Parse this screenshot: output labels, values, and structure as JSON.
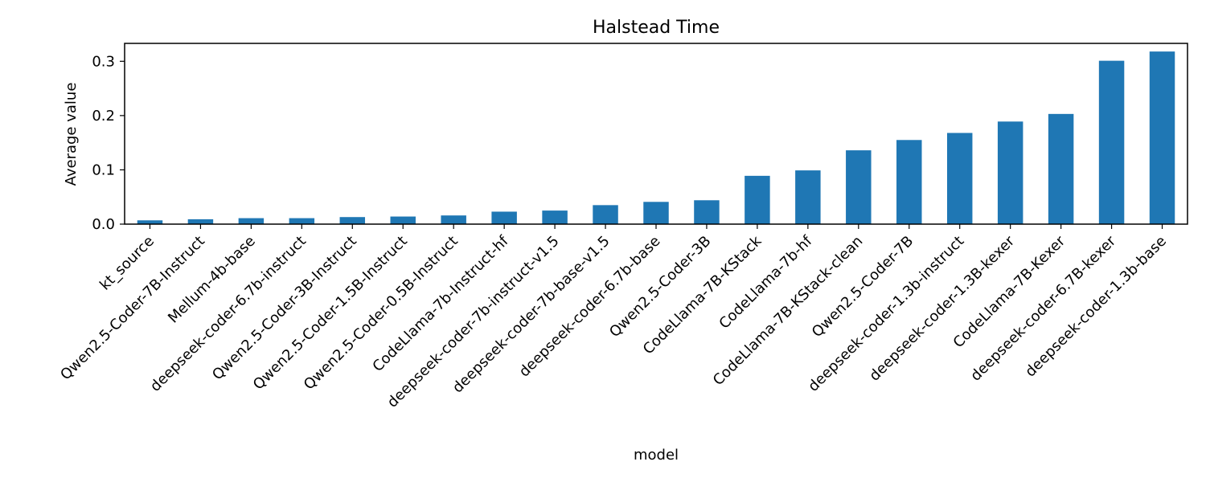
{
  "chart_data": {
    "type": "bar",
    "title": "Halstead Time",
    "xlabel": "model",
    "ylabel": "Average value",
    "ylim": [
      0,
      0.333
    ],
    "yticks": [
      0.0,
      0.1,
      0.2,
      0.3
    ],
    "ytick_labels": [
      "0.0",
      "0.1",
      "0.2",
      "0.3"
    ],
    "grid": false,
    "legend": "none",
    "bar_color": "#1f77b4",
    "categories": [
      "kt_source",
      "Qwen2.5-Coder-7B-Instruct",
      "Mellum-4b-base",
      "deepseek-coder-6.7b-instruct",
      "Qwen2.5-Coder-3B-Instruct",
      "Qwen2.5-Coder-1.5B-Instruct",
      "Qwen2.5-Coder-0.5B-Instruct",
      "CodeLlama-7b-Instruct-hf",
      "deepseek-coder-7b-instruct-v1.5",
      "deepseek-coder-7b-base-v1.5",
      "deepseek-coder-6.7b-base",
      "Qwen2.5-Coder-3B",
      "CodeLlama-7B-KStack",
      "CodeLlama-7b-hf",
      "CodeLlama-7B-KStack-clean",
      "Qwen2.5-Coder-7B",
      "deepseek-coder-1.3b-instruct",
      "deepseek-coder-1.3B-kexer",
      "CodeLlama-7B-Kexer",
      "deepseek-coder-6.7B-kexer",
      "deepseek-coder-1.3b-base"
    ],
    "values": [
      0.007,
      0.009,
      0.011,
      0.011,
      0.013,
      0.014,
      0.016,
      0.023,
      0.025,
      0.035,
      0.041,
      0.044,
      0.089,
      0.099,
      0.136,
      0.155,
      0.168,
      0.189,
      0.203,
      0.301,
      0.318
    ]
  }
}
